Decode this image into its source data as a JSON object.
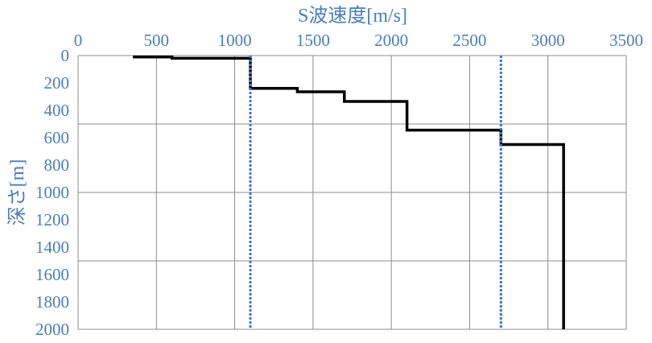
{
  "chart_data": {
    "type": "line",
    "xlabel": "S波速度[m/s]",
    "ylabel": "深さ[m]",
    "xlim": [
      0,
      3500
    ],
    "ylim": [
      0,
      2000
    ],
    "y_inverted": true,
    "x_ticks": [
      "0",
      "500",
      "1000",
      "1500",
      "2000",
      "2500",
      "3000",
      "3500"
    ],
    "y_ticks": [
      "0",
      "200",
      "400",
      "600",
      "800",
      "1000",
      "1200",
      "1400",
      "1600",
      "1800",
      "2000"
    ],
    "grid": true,
    "series": [
      {
        "style": "solid",
        "color": "#000000",
        "points": [
          [
            350,
            10
          ],
          [
            600,
            10
          ],
          [
            600,
            20
          ],
          [
            1100,
            20
          ],
          [
            1100,
            240
          ],
          [
            1400,
            240
          ],
          [
            1400,
            265
          ],
          [
            1700,
            265
          ],
          [
            1700,
            335
          ],
          [
            2100,
            335
          ],
          [
            2100,
            545
          ],
          [
            2700,
            545
          ],
          [
            2700,
            650
          ],
          [
            3100,
            650
          ],
          [
            3100,
            2000
          ]
        ]
      },
      {
        "style": "dotted",
        "color": "#4472c4",
        "points": [
          [
            1100,
            0
          ],
          [
            1100,
            2000
          ]
        ]
      },
      {
        "style": "dotted",
        "color": "#4472c4",
        "points": [
          [
            2700,
            0
          ],
          [
            2700,
            2000
          ]
        ]
      }
    ]
  }
}
